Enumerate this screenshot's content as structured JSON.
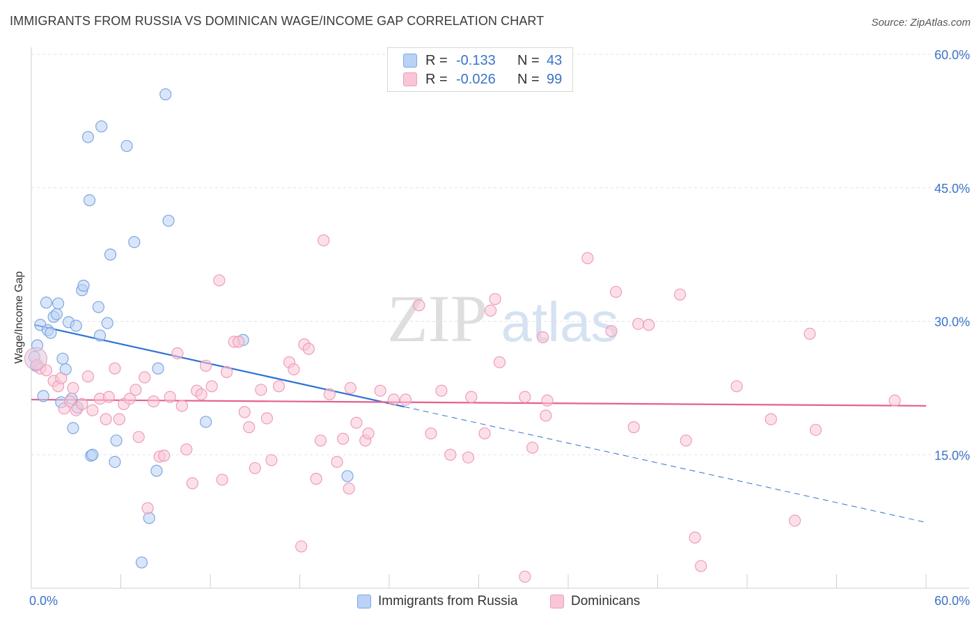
{
  "title": "IMMIGRANTS FROM RUSSIA VS DOMINICAN WAGE/INCOME GAP CORRELATION CHART",
  "source": "Source: ZipAtlas.com",
  "watermark": {
    "zip": "ZIP",
    "atlas": "atlas"
  },
  "stats": [
    {
      "r_label": "R =",
      "r_value": "-0.133",
      "n_label": "N =",
      "n_value": "43",
      "fill": "#b9d2f5",
      "stroke": "#7ea6e0"
    },
    {
      "r_label": "R =",
      "r_value": "-0.026",
      "n_label": "N =",
      "n_value": "99",
      "fill": "#f9c6d6",
      "stroke": "#ef9cb8"
    }
  ],
  "legend": [
    {
      "label": "Immigrants from Russia",
      "fill": "#b9d2f5",
      "stroke": "#7ea6e0"
    },
    {
      "label": "Dominicans",
      "fill": "#f9c6d6",
      "stroke": "#ef9cb8"
    }
  ],
  "chart_data": {
    "type": "scatter",
    "title": "IMMIGRANTS FROM RUSSIA VS DOMINICAN WAGE/INCOME GAP CORRELATION CHART",
    "xlabel": "",
    "ylabel": "Wage/Income Gap",
    "xlim": [
      0,
      60
    ],
    "ylim": [
      0,
      60
    ],
    "x_tick_labels": [
      "0.0%",
      "60.0%"
    ],
    "y_ticks": [
      15,
      30,
      45,
      60
    ],
    "y_tick_labels": [
      "15.0%",
      "30.0%",
      "45.0%",
      "60.0%"
    ],
    "grid": true,
    "legend_position": "bottom-center",
    "series": [
      {
        "name": "Immigrants from Russia",
        "color": "#7ea6e0",
        "fill": "#b9d2f5",
        "line_color": "#2f72d6",
        "trend": {
          "x0": 0.2,
          "y0": 29.6,
          "x1": 25.0,
          "y1": 20.4,
          "dash_to_x": 60.0,
          "dash_to_y": 7.4
        },
        "points": [
          [
            0.2,
            26.0
          ],
          [
            0.3,
            25.0
          ],
          [
            0.4,
            27.3
          ],
          [
            0.6,
            29.6
          ],
          [
            0.8,
            21.6
          ],
          [
            1.0,
            32.1
          ],
          [
            1.1,
            29.0
          ],
          [
            1.3,
            28.7
          ],
          [
            1.5,
            30.5
          ],
          [
            1.7,
            30.8
          ],
          [
            1.8,
            32.0
          ],
          [
            2.0,
            20.9
          ],
          [
            2.1,
            25.8
          ],
          [
            2.3,
            24.6
          ],
          [
            2.5,
            29.9
          ],
          [
            2.7,
            21.3
          ],
          [
            2.8,
            18.0
          ],
          [
            3.0,
            29.5
          ],
          [
            3.1,
            20.3
          ],
          [
            3.4,
            33.5
          ],
          [
            3.5,
            34.0
          ],
          [
            3.8,
            50.7
          ],
          [
            3.9,
            43.6
          ],
          [
            4.0,
            14.9
          ],
          [
            4.1,
            15.0
          ],
          [
            4.5,
            31.6
          ],
          [
            4.6,
            28.4
          ],
          [
            4.7,
            51.9
          ],
          [
            5.1,
            29.8
          ],
          [
            5.3,
            37.5
          ],
          [
            5.6,
            14.2
          ],
          [
            5.7,
            16.6
          ],
          [
            6.4,
            49.7
          ],
          [
            6.9,
            38.9
          ],
          [
            7.4,
            2.9
          ],
          [
            7.9,
            7.9
          ],
          [
            8.4,
            13.2
          ],
          [
            8.5,
            24.7
          ],
          [
            9.0,
            55.5
          ],
          [
            9.2,
            41.3
          ],
          [
            11.7,
            18.7
          ],
          [
            14.2,
            27.9
          ],
          [
            21.2,
            12.6
          ]
        ]
      },
      {
        "name": "Dominicans",
        "color": "#ef9cb8",
        "fill": "#f9c6d6",
        "line_color": "#e5608c",
        "trend": {
          "x0": 0.0,
          "y0": 21.2,
          "x1": 60.0,
          "y1": 20.5
        },
        "points": [
          [
            0.4,
            25.1
          ],
          [
            0.6,
            24.7
          ],
          [
            1.0,
            24.5
          ],
          [
            1.5,
            23.3
          ],
          [
            1.8,
            22.7
          ],
          [
            2.0,
            23.6
          ],
          [
            2.2,
            20.2
          ],
          [
            2.6,
            21.0
          ],
          [
            2.8,
            22.5
          ],
          [
            3.0,
            20.0
          ],
          [
            3.4,
            20.7
          ],
          [
            3.8,
            23.8
          ],
          [
            4.1,
            20.0
          ],
          [
            4.6,
            21.3
          ],
          [
            5.0,
            19.0
          ],
          [
            5.2,
            21.5
          ],
          [
            5.6,
            24.7
          ],
          [
            5.9,
            19.0
          ],
          [
            6.2,
            20.7
          ],
          [
            6.6,
            21.3
          ],
          [
            7.0,
            22.3
          ],
          [
            7.2,
            17.0
          ],
          [
            7.6,
            23.7
          ],
          [
            7.8,
            9.0
          ],
          [
            8.2,
            21.0
          ],
          [
            8.6,
            14.8
          ],
          [
            8.9,
            14.9
          ],
          [
            9.3,
            21.5
          ],
          [
            9.8,
            26.4
          ],
          [
            10.1,
            20.5
          ],
          [
            10.4,
            15.6
          ],
          [
            10.8,
            11.8
          ],
          [
            11.1,
            22.2
          ],
          [
            11.4,
            21.8
          ],
          [
            11.7,
            25.0
          ],
          [
            12.1,
            22.7
          ],
          [
            12.6,
            34.6
          ],
          [
            12.8,
            12.2
          ],
          [
            13.1,
            24.3
          ],
          [
            13.6,
            27.7
          ],
          [
            13.9,
            27.7
          ],
          [
            14.3,
            19.8
          ],
          [
            14.6,
            18.1
          ],
          [
            15.0,
            13.5
          ],
          [
            15.4,
            22.3
          ],
          [
            15.8,
            19.1
          ],
          [
            16.1,
            14.4
          ],
          [
            16.6,
            22.7
          ],
          [
            17.3,
            25.4
          ],
          [
            17.6,
            24.6
          ],
          [
            18.1,
            4.7
          ],
          [
            18.3,
            27.4
          ],
          [
            18.6,
            26.9
          ],
          [
            19.1,
            12.3
          ],
          [
            19.4,
            16.6
          ],
          [
            19.6,
            39.1
          ],
          [
            20.0,
            21.8
          ],
          [
            20.5,
            14.2
          ],
          [
            20.9,
            16.8
          ],
          [
            21.4,
            22.5
          ],
          [
            21.3,
            11.2
          ],
          [
            21.8,
            18.6
          ],
          [
            22.4,
            16.6
          ],
          [
            22.6,
            17.4
          ],
          [
            23.4,
            22.2
          ],
          [
            24.3,
            21.2
          ],
          [
            25.1,
            21.2
          ],
          [
            26.0,
            31.8
          ],
          [
            26.8,
            17.4
          ],
          [
            27.5,
            22.2
          ],
          [
            28.1,
            15.0
          ],
          [
            29.3,
            14.7
          ],
          [
            29.5,
            21.5
          ],
          [
            30.4,
            17.4
          ],
          [
            30.8,
            31.2
          ],
          [
            31.1,
            32.5
          ],
          [
            31.4,
            25.4
          ],
          [
            33.1,
            21.5
          ],
          [
            33.1,
            1.3
          ],
          [
            33.6,
            15.8
          ],
          [
            34.3,
            28.2
          ],
          [
            34.5,
            19.4
          ],
          [
            34.6,
            21.1
          ],
          [
            37.3,
            37.1
          ],
          [
            39.2,
            33.3
          ],
          [
            38.9,
            28.9
          ],
          [
            40.4,
            18.1
          ],
          [
            40.7,
            29.7
          ],
          [
            41.4,
            29.6
          ],
          [
            43.5,
            33.0
          ],
          [
            43.9,
            16.6
          ],
          [
            44.5,
            5.7
          ],
          [
            44.9,
            2.5
          ],
          [
            47.3,
            22.7
          ],
          [
            49.6,
            19.0
          ],
          [
            51.2,
            7.6
          ],
          [
            52.2,
            28.6
          ],
          [
            52.6,
            17.8
          ],
          [
            57.9,
            21.1
          ]
        ]
      }
    ]
  }
}
